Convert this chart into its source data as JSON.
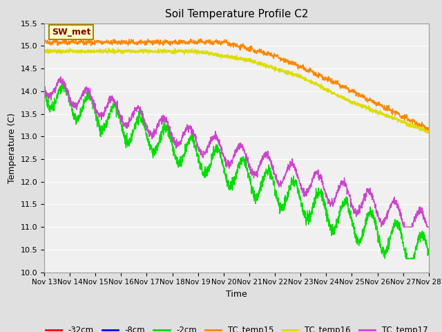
{
  "title": "Soil Temperature Profile C2",
  "xlabel": "Time",
  "ylabel": "Temperature (C)",
  "ylim": [
    10.0,
    15.5
  ],
  "yticks": [
    10.0,
    10.5,
    11.0,
    11.5,
    12.0,
    12.5,
    13.0,
    13.5,
    14.0,
    14.5,
    15.0,
    15.5
  ],
  "num_days": 15,
  "series": {
    "-32cm": {
      "color": "#ff0000"
    },
    "-8cm": {
      "color": "#0000ff"
    },
    "-2cm": {
      "color": "#00dd00"
    },
    "TC_temp15": {
      "color": "#ff8800"
    },
    "TC_temp16": {
      "color": "#dddd00"
    },
    "TC_temp17": {
      "color": "#cc44cc"
    }
  },
  "legend_label": "SW_met",
  "legend_bg": "#ffffcc",
  "legend_border": "#aa8800",
  "bg_color": "#e0e0e0",
  "plot_bg": "#f0f0f0",
  "linewidth": 1.0
}
